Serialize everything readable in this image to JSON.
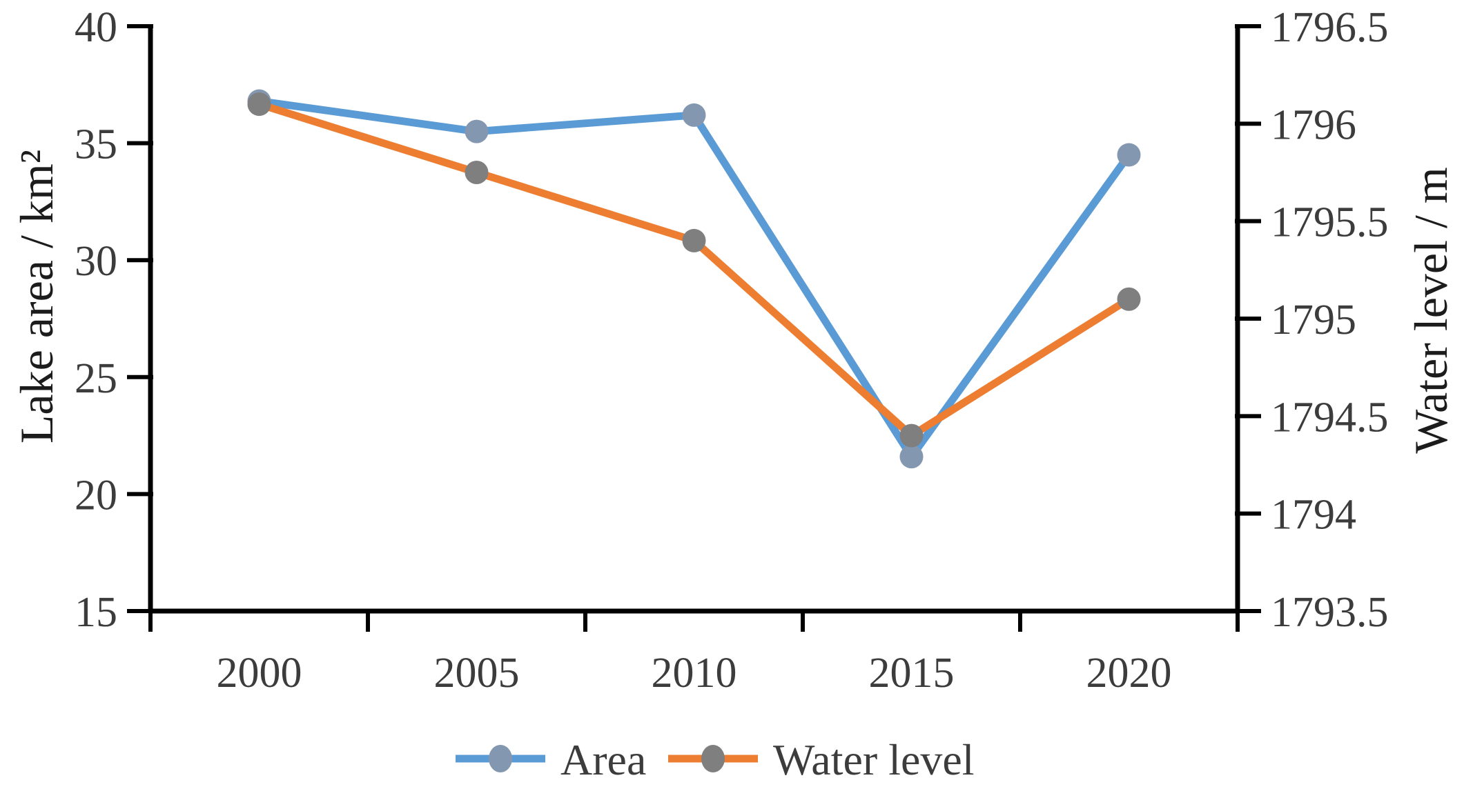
{
  "figure": {
    "background": "#ffffff"
  },
  "chart_data": {
    "type": "line",
    "title": "",
    "categories": [
      "2000",
      "2005",
      "2010",
      "2015",
      "2020"
    ],
    "series": [
      {
        "name": "Area",
        "axis": "left",
        "values": [
          36.8,
          35.5,
          36.2,
          21.6,
          34.5
        ],
        "line_color": "#5B9BD5",
        "marker_color": "#8497B0",
        "marker": "circle"
      },
      {
        "name": "Water level",
        "axis": "right",
        "values": [
          1796.1,
          1795.75,
          1795.4,
          1794.4,
          1795.1
        ],
        "line_color": "#ED7D31",
        "marker_color": "#7F7F7F",
        "marker": "circle"
      }
    ],
    "left_axis": {
      "label": "Lake area / km²",
      "min": 15,
      "max": 40,
      "ticks": [
        "40",
        "35",
        "30",
        "25",
        "20",
        "15"
      ]
    },
    "right_axis": {
      "label": "Water level / m",
      "min": 1793.5,
      "max": 1796.5,
      "ticks": [
        "1796.5",
        "1796",
        "1795.5",
        "1795",
        "1794.5",
        "1794",
        "1793.5"
      ]
    },
    "x_axis": {
      "tick_style": "between-categories"
    },
    "legend": {
      "position": "bottom",
      "entries": [
        "Area",
        "Water level"
      ]
    },
    "styles": {
      "axis_color": "#000000",
      "tick_text_color": "#3c3c3c",
      "grid": false,
      "background": "#ffffff"
    }
  }
}
